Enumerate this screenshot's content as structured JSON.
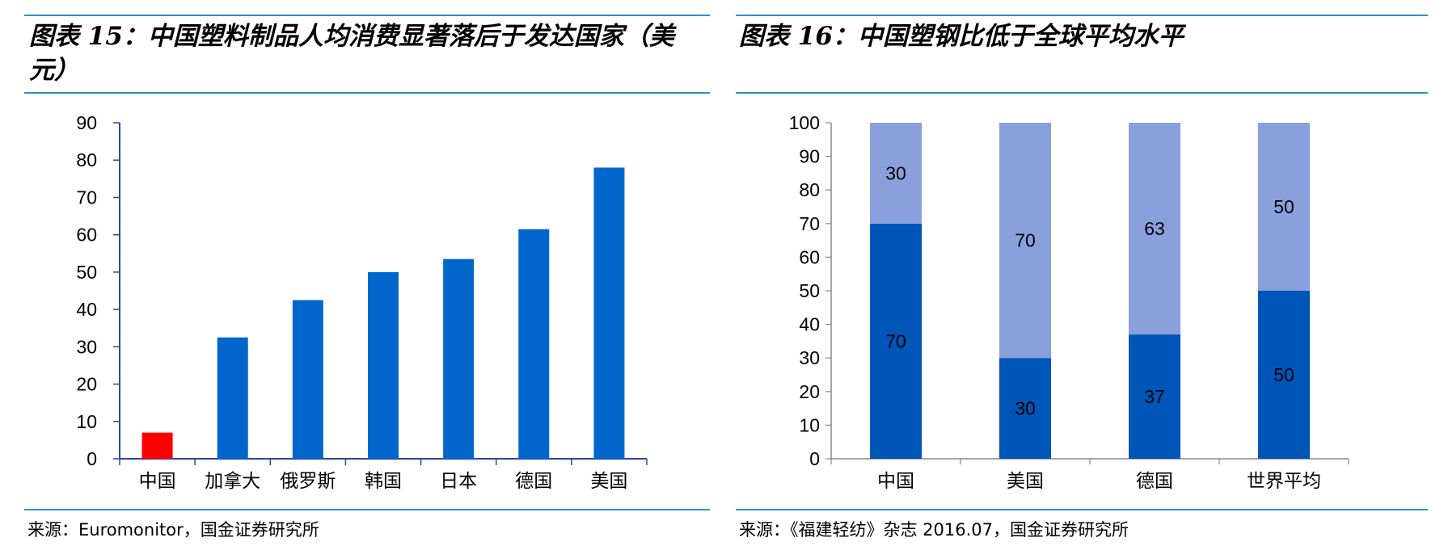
{
  "left": {
    "title": "图表 15：中国塑料制品人均消费显著落后于发达国家（美元）",
    "source": "来源：Euromonitor，国金证券研究所"
  },
  "right": {
    "title": "图表 16：中国塑钢比低于全球平均水平",
    "source": "来源：《福建轻纺》杂志 2016.07，国金证券研究所"
  },
  "colors": {
    "rule": "#2e8fce",
    "bar_blue": "#0066cc",
    "bar_red": "#ff0000",
    "stack_dark": "#0055b8",
    "stack_light": "#8aa0dc",
    "axis": "#2a4a9a"
  },
  "chart_data": [
    {
      "type": "bar",
      "title": "",
      "categories": [
        "中国",
        "加拿大",
        "俄罗斯",
        "韩国",
        "日本",
        "德国",
        "美国"
      ],
      "values": [
        7,
        32.5,
        42.5,
        50,
        53.5,
        61.5,
        78
      ],
      "highlight_index": 0,
      "ylim": [
        0,
        90
      ],
      "yticks": [
        0,
        10,
        20,
        30,
        40,
        50,
        60,
        70,
        80,
        90
      ],
      "grid": false,
      "xlabel": "",
      "ylabel": ""
    },
    {
      "type": "bar",
      "stacked": true,
      "title": "",
      "categories": [
        "中国",
        "美国",
        "德国",
        "世界平均"
      ],
      "series": [
        {
          "values": [
            70,
            30,
            37,
            50
          ]
        },
        {
          "values": [
            30,
            70,
            63,
            50
          ]
        }
      ],
      "ylim": [
        0,
        100
      ],
      "yticks": [
        0,
        10,
        20,
        30,
        40,
        50,
        60,
        70,
        80,
        90,
        100
      ],
      "grid": false,
      "data_labels": true,
      "xlabel": "",
      "ylabel": ""
    }
  ]
}
